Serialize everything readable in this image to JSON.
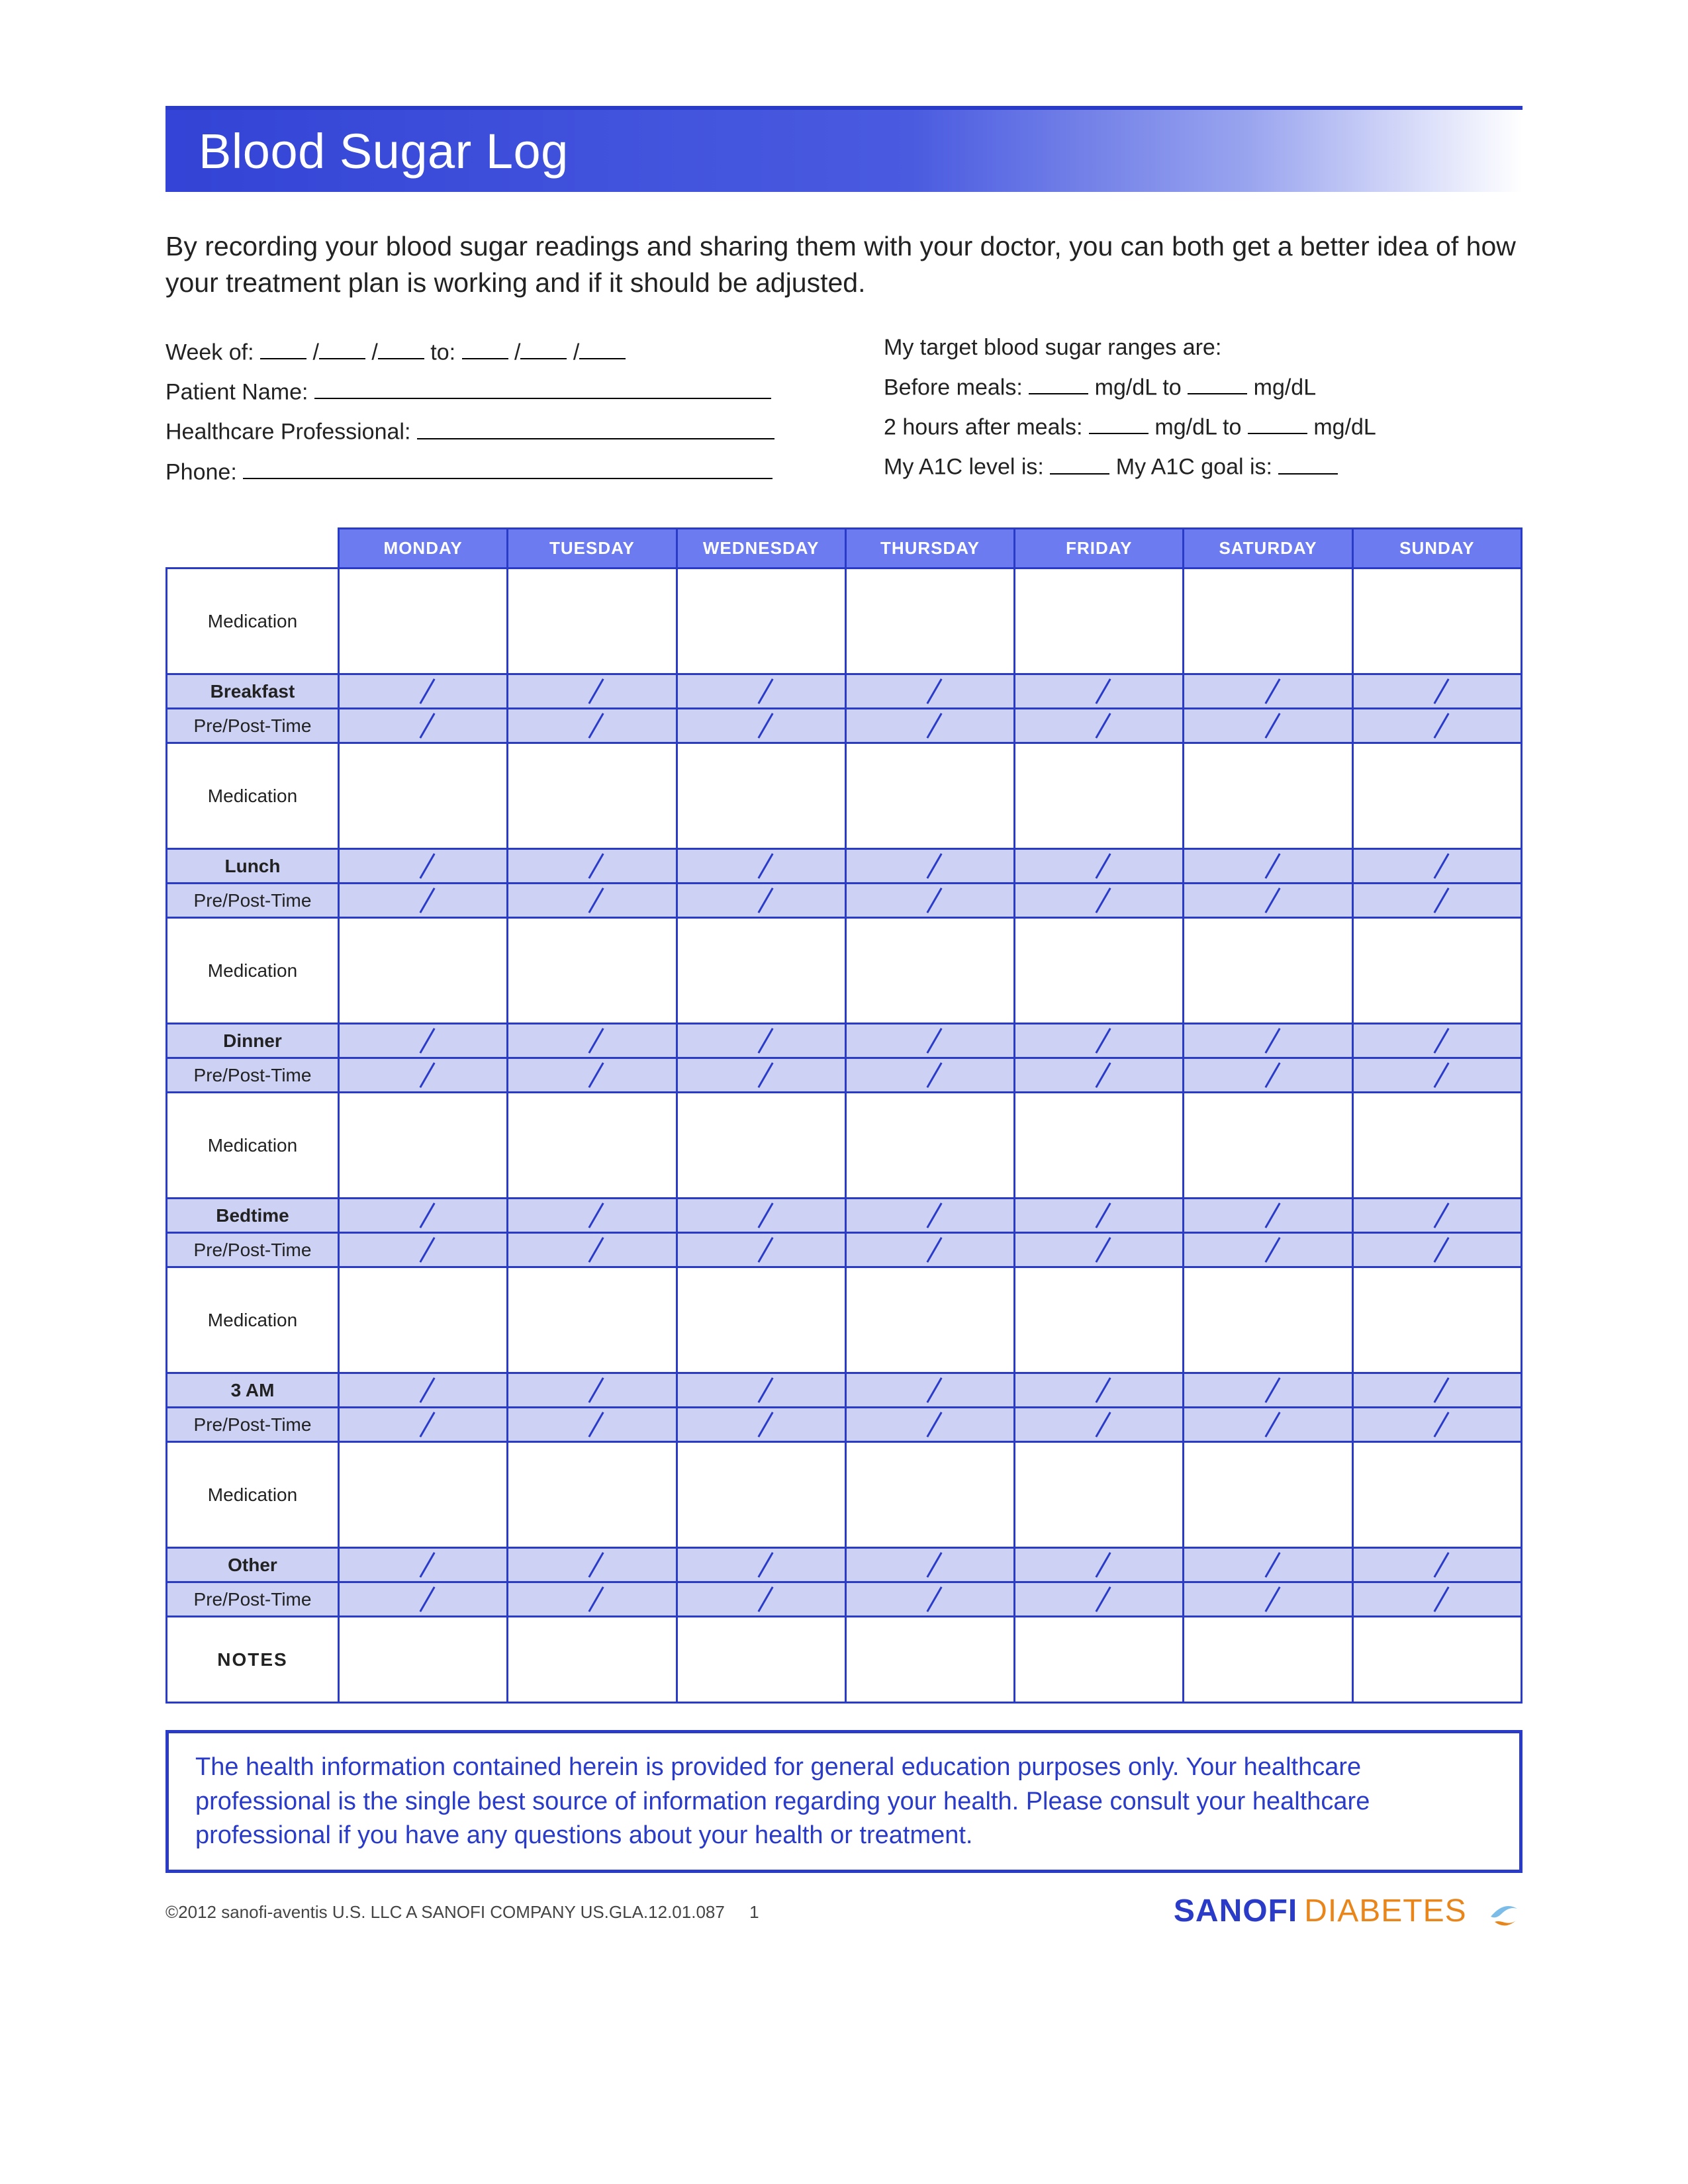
{
  "title": "Blood Sugar Log",
  "intro": "By recording your blood sugar readings and sharing them with your doctor, you can both get a better idea of how your treatment plan is working and if it should be adjusted.",
  "meta_left": {
    "week_of": "Week of:",
    "to": "to:",
    "patient": "Patient Name:",
    "hcp": "Healthcare Professional:",
    "phone": "Phone:"
  },
  "meta_right": {
    "target_intro": "My target blood sugar ranges are:",
    "before": "Before meals:",
    "unit_to": "mg/dL to",
    "unit": "mg/dL",
    "after": "2 hours after meals:",
    "a1c_level": "My A1C level is:",
    "a1c_goal": "My A1C goal is:"
  },
  "days": [
    "MONDAY",
    "TUESDAY",
    "WEDNESDAY",
    "THURSDAY",
    "FRIDAY",
    "SATURDAY",
    "SUNDAY"
  ],
  "rows": {
    "medication": "Medication",
    "breakfast": "Breakfast",
    "lunch": "Lunch",
    "dinner": "Dinner",
    "bedtime": "Bedtime",
    "three_am": "3 AM",
    "other": "Other",
    "prepost": "Pre/Post-Time",
    "notes": "NOTES"
  },
  "disclaimer": "The health information contained herein is provided for general education purposes only. Your healthcare professional is the single best source of information regarding your health. Please consult your healthcare professional if you have any questions about your health or treatment.",
  "footer": {
    "copyright": "©2012 sanofi-aventis U.S. LLC  A SANOFI COMPANY  US.GLA.12.01.087",
    "page": "1",
    "brand1": "SANOFI",
    "brand2": "DIABETES"
  },
  "colors": {
    "primary": "#2a3bc8",
    "header_fill": "#6c7cf0",
    "shade_fill": "#cdd2f5",
    "accent_orange": "#e8861c"
  }
}
